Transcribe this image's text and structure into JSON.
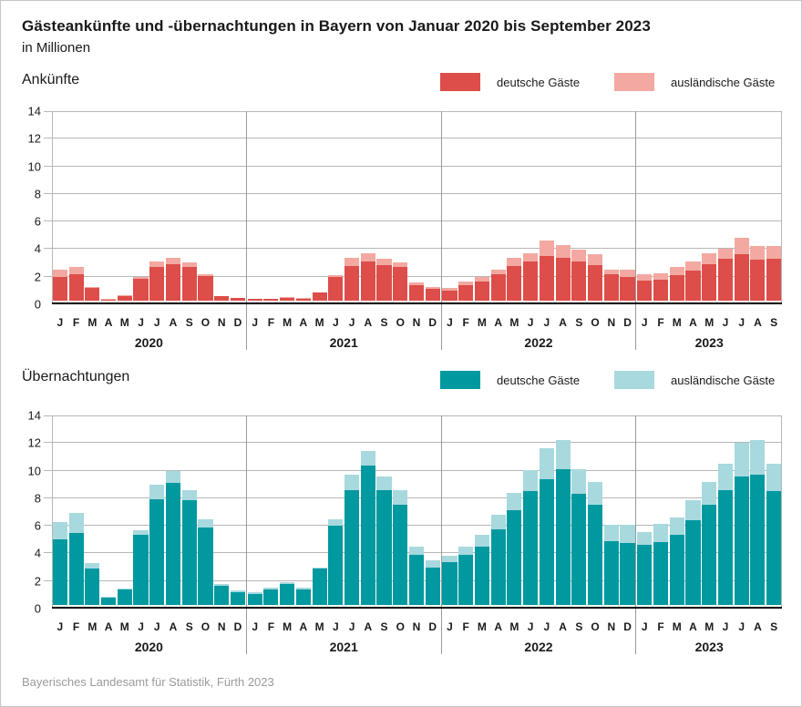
{
  "header": {
    "title": "Gästeankünfte und -übernachtungen in Bayern von Januar 2020 bis September 2023",
    "subtitle": "in Millionen"
  },
  "legend": {
    "domestic": "deutsche Gäste",
    "foreign": "ausländische Gäste"
  },
  "footer": {
    "source": "Bayerisches Landesamt für Statistik, Fürth 2023"
  },
  "colors": {
    "arrivals_domestic": "#dd4d49",
    "arrivals_foreign": "#f3a9a1",
    "nights_domestic": "#0099a0",
    "nights_foreign": "#a8d9de",
    "gridline": "#b7b7b7",
    "divider": "#9a9a9a",
    "baseline": "#000000",
    "footer_text": "#9b9b9b"
  },
  "chart_data": [
    {
      "type": "bar",
      "stacked": true,
      "title": "Ankünfte",
      "unit": "in Millionen",
      "ylim": [
        0,
        14
      ],
      "yticks": [
        0,
        2,
        4,
        6,
        8,
        10,
        12,
        14
      ],
      "grid": true,
      "legend_position": "top-right",
      "series_names": [
        "deutsche Gäste",
        "ausländische Gäste"
      ],
      "colors": [
        "#dd4d49",
        "#f3a9a1"
      ],
      "groups": [
        {
          "year": "2020",
          "categories": [
            "J",
            "F",
            "M",
            "A",
            "M",
            "J",
            "J",
            "A",
            "S",
            "O",
            "N",
            "D"
          ],
          "domestic": [
            1.7,
            1.9,
            0.9,
            0.07,
            0.32,
            1.6,
            2.45,
            2.7,
            2.5,
            1.8,
            0.28,
            0.16
          ],
          "foreign": [
            0.6,
            0.6,
            0.12,
            0.01,
            0.03,
            0.12,
            0.45,
            0.45,
            0.28,
            0.12,
            0.04,
            0.03
          ]
        },
        {
          "year": "2021",
          "categories": [
            "J",
            "F",
            "M",
            "A",
            "M",
            "J",
            "J",
            "A",
            "S",
            "O",
            "N",
            "D"
          ],
          "domestic": [
            0.08,
            0.1,
            0.18,
            0.14,
            0.55,
            1.7,
            2.55,
            2.9,
            2.6,
            2.45,
            1.1,
            0.85
          ],
          "foreign": [
            0.02,
            0.02,
            0.04,
            0.04,
            0.06,
            0.15,
            0.6,
            0.55,
            0.5,
            0.35,
            0.2,
            0.15
          ]
        },
        {
          "year": "2022",
          "categories": [
            "J",
            "F",
            "M",
            "A",
            "M",
            "J",
            "J",
            "A",
            "S",
            "O",
            "N",
            "D"
          ],
          "domestic": [
            0.75,
            1.15,
            1.4,
            1.95,
            2.55,
            2.85,
            3.3,
            3.15,
            2.85,
            2.6,
            1.9,
            1.7
          ],
          "foreign": [
            0.15,
            0.25,
            0.3,
            0.35,
            0.6,
            0.65,
            1.1,
            0.95,
            0.9,
            0.8,
            0.4,
            0.55
          ]
        },
        {
          "year": "2023",
          "categories": [
            "J",
            "F",
            "M",
            "A",
            "M",
            "J",
            "J",
            "A",
            "S"
          ],
          "domestic": [
            1.45,
            1.5,
            1.85,
            2.2,
            2.65,
            3.05,
            3.4,
            3.0,
            3.1
          ],
          "foreign": [
            0.5,
            0.5,
            0.6,
            0.65,
            0.8,
            0.8,
            1.25,
            1.05,
            0.95
          ]
        }
      ]
    },
    {
      "type": "bar",
      "stacked": true,
      "title": "Übernachtungen",
      "unit": "in Millionen",
      "ylim": [
        0,
        14
      ],
      "yticks": [
        0,
        2,
        4,
        6,
        8,
        10,
        12,
        14
      ],
      "grid": true,
      "legend_position": "top-right",
      "series_names": [
        "deutsche Gäste",
        "ausländische Gäste"
      ],
      "colors": [
        "#0099a0",
        "#a8d9de"
      ],
      "groups": [
        {
          "year": "2020",
          "categories": [
            "J",
            "F",
            "M",
            "A",
            "M",
            "J",
            "J",
            "A",
            "S",
            "O",
            "N",
            "D"
          ],
          "domestic": [
            4.8,
            5.3,
            2.7,
            0.5,
            1.1,
            5.15,
            7.8,
            9.0,
            7.7,
            5.7,
            1.4,
            0.95
          ],
          "foreign": [
            1.3,
            1.5,
            0.4,
            0.1,
            0.1,
            0.35,
            1.1,
            0.9,
            0.75,
            0.6,
            0.15,
            0.1
          ]
        },
        {
          "year": "2021",
          "categories": [
            "J",
            "F",
            "M",
            "A",
            "M",
            "J",
            "J",
            "A",
            "S",
            "O",
            "N",
            "D"
          ],
          "domestic": [
            0.8,
            1.15,
            1.5,
            1.15,
            2.65,
            5.85,
            8.5,
            10.3,
            8.5,
            7.4,
            3.7,
            2.75
          ],
          "foreign": [
            0.15,
            0.1,
            0.15,
            0.1,
            0.1,
            0.45,
            1.1,
            1.1,
            1.0,
            1.1,
            0.6,
            0.5
          ]
        },
        {
          "year": "2022",
          "categories": [
            "J",
            "F",
            "M",
            "A",
            "M",
            "J",
            "J",
            "A",
            "S",
            "O",
            "N",
            "D"
          ],
          "domestic": [
            3.15,
            3.7,
            4.3,
            5.6,
            7.0,
            8.4,
            9.3,
            10.0,
            8.2,
            7.4,
            4.7,
            4.55
          ],
          "foreign": [
            0.5,
            0.6,
            0.85,
            1.05,
            1.3,
            1.55,
            2.3,
            2.2,
            1.85,
            1.7,
            1.2,
            1.35
          ]
        },
        {
          "year": "2023",
          "categories": [
            "J",
            "F",
            "M",
            "A",
            "M",
            "J",
            "J",
            "A",
            "S"
          ],
          "domestic": [
            4.4,
            4.65,
            5.15,
            6.25,
            7.4,
            8.45,
            9.5,
            9.6,
            8.4
          ],
          "foreign": [
            0.95,
            1.3,
            1.3,
            1.5,
            1.7,
            1.95,
            2.5,
            2.55,
            2.05
          ]
        }
      ]
    }
  ]
}
